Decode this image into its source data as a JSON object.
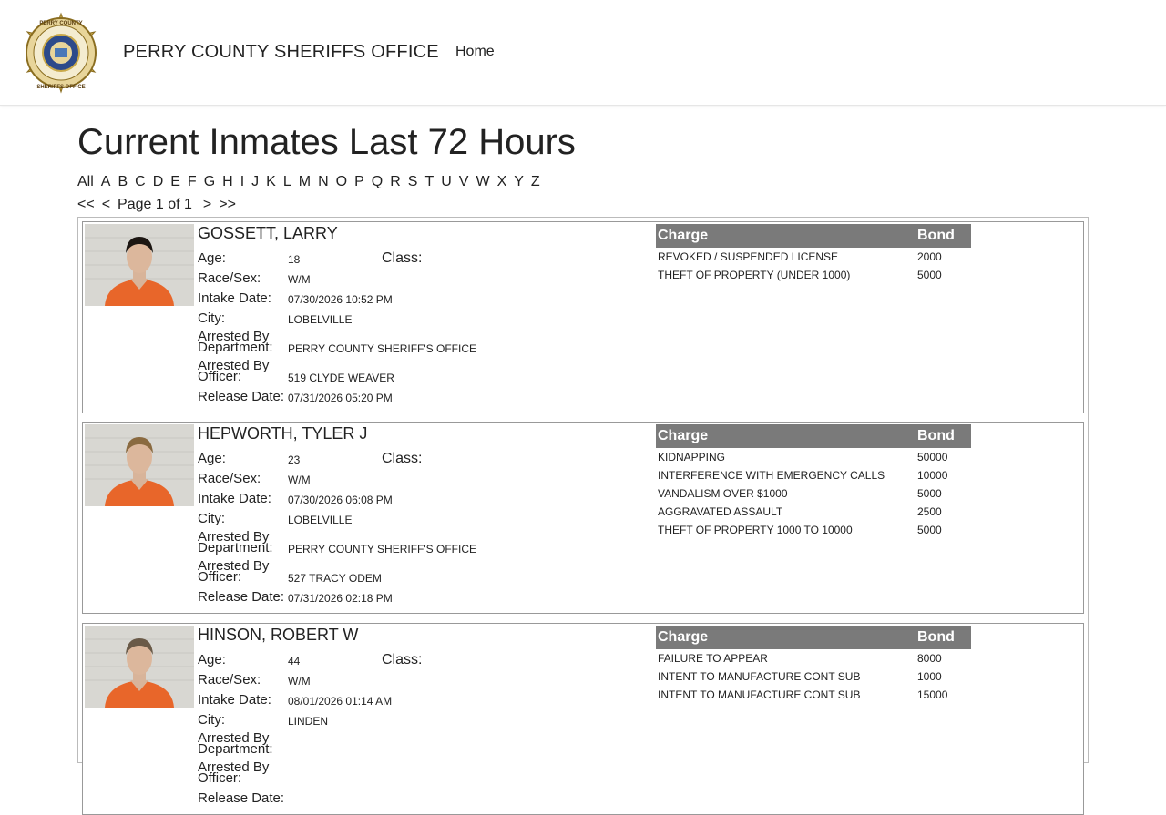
{
  "header": {
    "site_name": "PERRY COUNTY SHERIFFS OFFICE",
    "nav_home": "Home",
    "badge": {
      "top_text": "PERRY COUNTY",
      "bottom_text": "SHERIFFS OFFICE",
      "inner_top": "PROTECT",
      "inner_bottom": "AND SERVE"
    }
  },
  "page_title": "Current Inmates Last 72 Hours",
  "alphabet": [
    "All",
    "A",
    "B",
    "C",
    "D",
    "E",
    "F",
    "G",
    "H",
    "I",
    "J",
    "K",
    "L",
    "M",
    "N",
    "O",
    "P",
    "Q",
    "R",
    "S",
    "T",
    "U",
    "V",
    "W",
    "X",
    "Y",
    "Z"
  ],
  "pager": {
    "first": "<<",
    "prev": "<",
    "info": "Page 1 of 1",
    "next": ">",
    "last": ">>"
  },
  "labels": {
    "age": "Age:",
    "class": "Class:",
    "race_sex": "Race/Sex:",
    "intake": "Intake Date:",
    "city": "City:",
    "arrested_by_1": "Arrested By",
    "department": "Department:",
    "officer": "Officer:",
    "release": "Release Date:",
    "charge": "Charge",
    "bond": "Bond"
  },
  "inmates": [
    {
      "name": "GOSSETT, LARRY",
      "age": "18",
      "class": "",
      "race_sex": "W/M",
      "intake": "07/30/2026 10:52 PM",
      "city": "LOBELVILLE",
      "department": "PERRY COUNTY SHERIFF'S OFFICE",
      "officer": "519 CLYDE WEAVER",
      "release": "07/31/2026 05:20 PM",
      "charges": [
        {
          "charge": "REVOKED / SUSPENDED LICENSE",
          "bond": "2000"
        },
        {
          "charge": "THEFT OF PROPERTY (UNDER 1000)",
          "bond": "5000"
        }
      ]
    },
    {
      "name": "HEPWORTH, TYLER J",
      "age": "23",
      "class": "",
      "race_sex": "W/M",
      "intake": "07/30/2026 06:08 PM",
      "city": "LOBELVILLE",
      "department": "PERRY COUNTY SHERIFF'S OFFICE",
      "officer": "527 TRACY ODEM",
      "release": "07/31/2026 02:18 PM",
      "charges": [
        {
          "charge": "KIDNAPPING",
          "bond": "50000"
        },
        {
          "charge": "INTERFERENCE WITH EMERGENCY CALLS",
          "bond": "10000"
        },
        {
          "charge": "VANDALISM OVER $1000",
          "bond": "5000"
        },
        {
          "charge": "AGGRAVATED ASSAULT",
          "bond": "2500"
        },
        {
          "charge": "THEFT OF PROPERTY 1000 TO 10000",
          "bond": "5000"
        }
      ]
    },
    {
      "name": "HINSON, ROBERT W",
      "age": "44",
      "class": "",
      "race_sex": "W/M",
      "intake": "08/01/2026 01:14 AM",
      "city": "LINDEN",
      "department": "",
      "officer": "",
      "release": "",
      "charges": [
        {
          "charge": "FAILURE TO APPEAR",
          "bond": "8000"
        },
        {
          "charge": "INTENT TO MANUFACTURE CONT SUB",
          "bond": "1000"
        },
        {
          "charge": "INTENT TO MANUFACTURE CONT SUB",
          "bond": "15000"
        }
      ]
    }
  ]
}
